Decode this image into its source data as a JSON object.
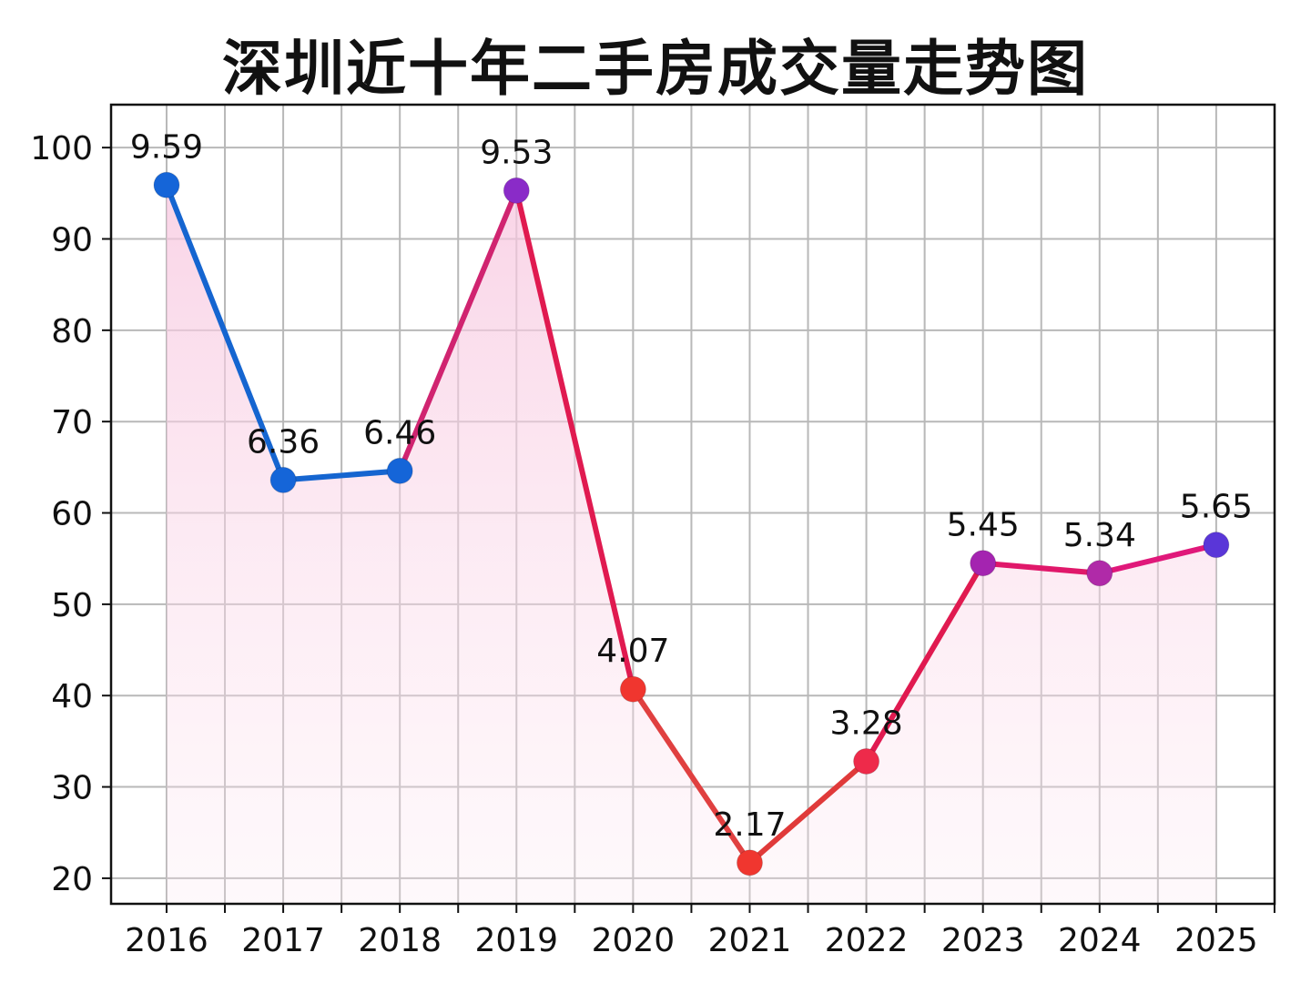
{
  "chart_data": {
    "type": "line",
    "title": "深圳近十年二手房成交量走势图",
    "xlabel": "",
    "ylabel": "",
    "categories": [
      "2016",
      "2017",
      "2018",
      "2019",
      "2020",
      "2021",
      "2022",
      "2023",
      "2024",
      "2025"
    ],
    "values": [
      95.9,
      63.6,
      64.6,
      95.3,
      40.7,
      21.7,
      32.8,
      54.5,
      53.4,
      56.5
    ],
    "data_labels": [
      "9.59",
      "6.36",
      "6.46",
      "9.53",
      "4.07",
      "2.17",
      "3.28",
      "5.45",
      "5.34",
      "5.65"
    ],
    "yticks": [
      "20",
      "30",
      "40",
      "50",
      "60",
      "70",
      "80",
      "90",
      "100"
    ],
    "ylim": [
      17.2,
      104.7
    ],
    "grid": true,
    "legend": "none",
    "area_fill": true,
    "point_colors": [
      "#1565d8",
      "#1565d8",
      "#1565d8",
      "#8a2bc8",
      "#f0362f",
      "#f0362f",
      "#ee2a4a",
      "#a424b0",
      "#b02aa8",
      "#5a36d8"
    ],
    "segment_colors": [
      "#1565d0",
      "#1565d0",
      "#d02470",
      "#e01a50",
      "#e04040",
      "#e03a3a",
      "#e01a50",
      "#e0186a",
      "#e0187a"
    ],
    "fill_color": "#f7c6df"
  }
}
